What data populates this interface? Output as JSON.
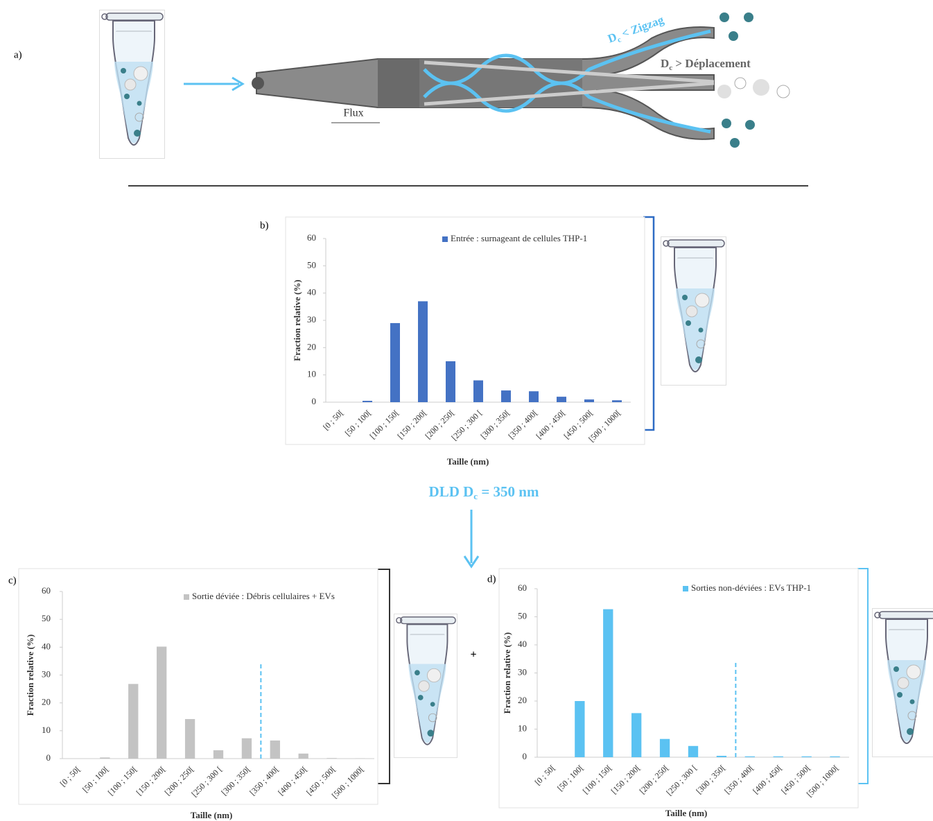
{
  "panel_labels": [
    "a)",
    "b)",
    "c)",
    "d)"
  ],
  "diagram": {
    "flow_label": "Flux",
    "zigzag": {
      "symbol": "D",
      "subscript": "c",
      "text": " < Zigzag"
    },
    "displacement": {
      "symbol": "D",
      "subscript": "c",
      "text": " > Déplacement"
    },
    "dld": {
      "symbol": "DLD D",
      "subscript": "c",
      "text": " = 350 nm"
    },
    "plus": "+"
  },
  "chart_data": [
    {
      "type": "bar",
      "x_label": "Taille (nm)",
      "y_label": "Fraction relative (%)",
      "categories": [
        "[0 ; 50[",
        "[50 ; 100[",
        "[100 ; 150[",
        "[150 ; 200[",
        "[200 ; 250[",
        "[250 ; 300 [",
        "[300 ; 350[",
        "[350 ; 400[",
        "[400 ; 450[",
        "[450 ; 500[",
        "[500 ; 1000["
      ],
      "series": [
        {
          "name": "Entrée : surnageant de cellules THP-1",
          "color": "#4472c4",
          "values": [
            0,
            0.5,
            29,
            37,
            15,
            8,
            4.3,
            4,
            2,
            1,
            0.7
          ]
        }
      ],
      "ylim": [
        0,
        60
      ],
      "yticks": [
        0,
        10,
        20,
        30,
        40,
        50,
        60
      ]
    },
    {
      "type": "bar",
      "x_label": "Taille (nm)",
      "y_label": "Fraction relative (%)",
      "categories": [
        "[0 ; 50[",
        "[50 ; 100[",
        "[100 ; 150[",
        "[150 ; 200[",
        "[200 ; 250[",
        "[250 ; 300 [",
        "[300 ; 350[",
        "[350 ; 400[",
        "[400 ; 450[",
        "[450 ; 500[",
        "[500 ; 1000["
      ],
      "series": [
        {
          "name": "Sortie déviée : Débris cellulaires + EVs",
          "color": "#c3c3c3",
          "values": [
            0,
            0.4,
            26.8,
            40.2,
            14.2,
            3,
            7.3,
            6.5,
            1.8,
            0.2,
            0.1
          ]
        }
      ],
      "ylim": [
        0,
        60
      ],
      "yticks": [
        0,
        10,
        20,
        30,
        40,
        50,
        60
      ]
    },
    {
      "type": "bar",
      "x_label": "Taille (nm)",
      "y_label": "Fraction relative (%)",
      "categories": [
        "[0 ; 50[",
        "[50 ; 100[",
        "[100 ; 150[",
        "[150 ; 200[",
        "[200 ; 250[",
        "[250 ; 300 [",
        "[300 ; 350[",
        "[350 ; 400[",
        "[400 ; 450[",
        "[450 ; 500[",
        "[500 ; 1000["
      ],
      "series": [
        {
          "name": "Sorties non-déviées : EVs THP-1",
          "color": "#5bc2f2",
          "values": [
            0,
            20,
            52.7,
            15.7,
            6.5,
            4,
            0.5,
            0.3,
            0.3,
            0.3,
            0.3
          ]
        }
      ],
      "ylim": [
        0,
        60
      ],
      "yticks": [
        0,
        10,
        20,
        30,
        40,
        50,
        60
      ]
    }
  ]
}
